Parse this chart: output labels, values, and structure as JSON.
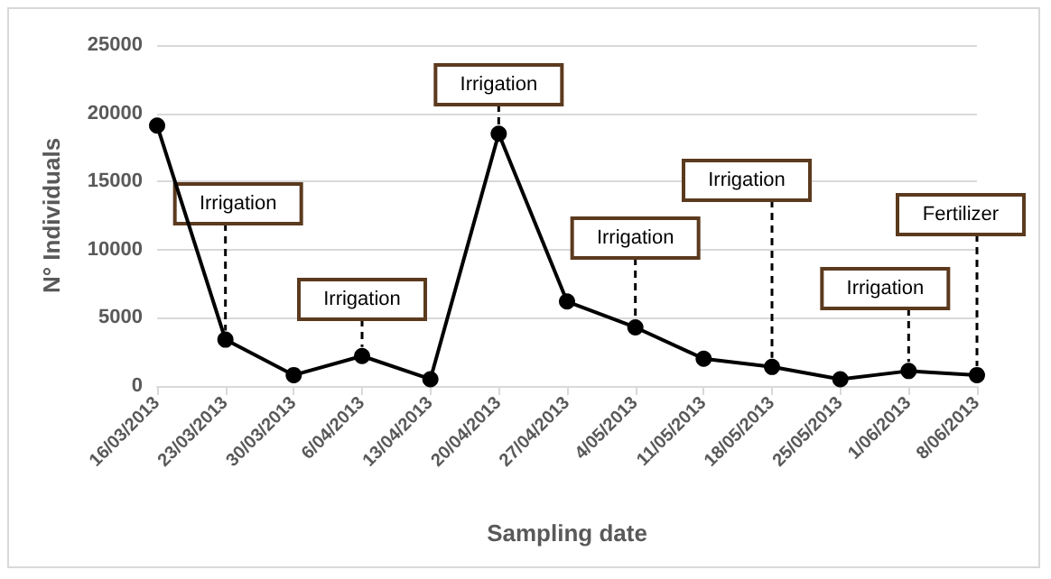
{
  "chart_data": {
    "type": "line",
    "xlabel": "Sampling date",
    "ylabel": "N° Individuals",
    "categories": [
      "16/03/2013",
      "23/03/2013",
      "30/03/2013",
      "6/04/2013",
      "13/04/2013",
      "20/04/2013",
      "27/04/2013",
      "4/05/2013",
      "11/05/2013",
      "18/05/2013",
      "25/05/2013",
      "1/06/2013",
      "8/06/2013"
    ],
    "series": [
      {
        "color": "#000000",
        "values": [
          19100,
          3400,
          800,
          2200,
          500,
          18500,
          6200,
          4300,
          2000,
          1400,
          500,
          1100,
          800
        ]
      }
    ],
    "ylim": [
      0,
      25000
    ],
    "yticks": [
      0,
      5000,
      10000,
      15000,
      20000,
      25000
    ],
    "grid": "y",
    "marker": "circle",
    "line_style": "solid",
    "annotations": [
      {
        "text": "Irrigation",
        "x": "23/03/2013",
        "y": 3400
      },
      {
        "text": "Irrigation",
        "x": "6/04/2013",
        "y": 2200
      },
      {
        "text": "Irrigation",
        "x": "20/04/2013",
        "y": 18500
      },
      {
        "text": "Irrigation",
        "x": "4/05/2013",
        "y": 4300
      },
      {
        "text": "Irrigation",
        "x": "18/05/2013",
        "y": 1400
      },
      {
        "text": "Irrigation",
        "x": "1/06/2013",
        "y": 1100
      },
      {
        "text": "Fertilizer",
        "x": "8/06/2013",
        "y": 800
      }
    ]
  }
}
